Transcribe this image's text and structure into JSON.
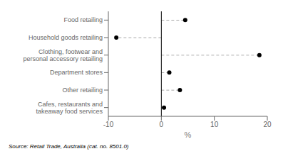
{
  "chart_data": {
    "type": "lollipop",
    "orientation": "horizontal",
    "categories": [
      "Food retailing",
      "Household goods retailing",
      "Clothing, footwear and\npersonal accessory retailing",
      "Department stores",
      "Other retailing",
      "Cafes, restaurants and\ntakeaway food services"
    ],
    "values": [
      4.5,
      -8.5,
      18.5,
      1.5,
      3.5,
      0.5
    ],
    "xlim": [
      -10,
      20
    ],
    "xticks": [
      -10,
      0,
      10,
      20
    ],
    "xlabel": "%",
    "color": "#000000",
    "grid": false,
    "annotations": [
      "Source: Retail Trade, Australia (cat. no. 8501.0)"
    ]
  }
}
